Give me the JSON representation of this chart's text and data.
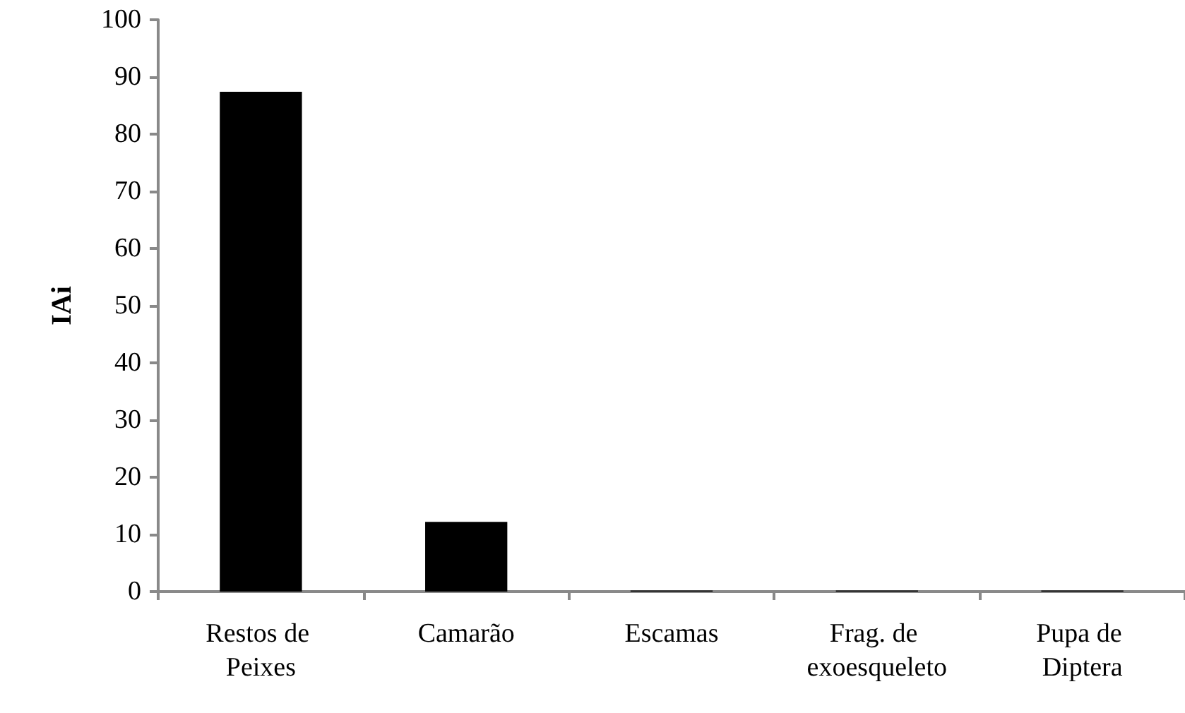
{
  "chart_data": {
    "type": "bar",
    "ylabel": "IAi",
    "categories": [
      "Restos de Peixes",
      "Camarão",
      "Escamas",
      "Frag. de exoesqueleto",
      "Pupa de Diptera"
    ],
    "values": [
      87.4,
      12.2,
      0.2,
      0.2,
      0.2
    ],
    "color": "#000000",
    "ylim": [
      0,
      100
    ],
    "yticks": [
      0,
      10,
      20,
      30,
      40,
      50,
      60,
      70,
      80,
      90,
      100
    ],
    "grid": false
  }
}
